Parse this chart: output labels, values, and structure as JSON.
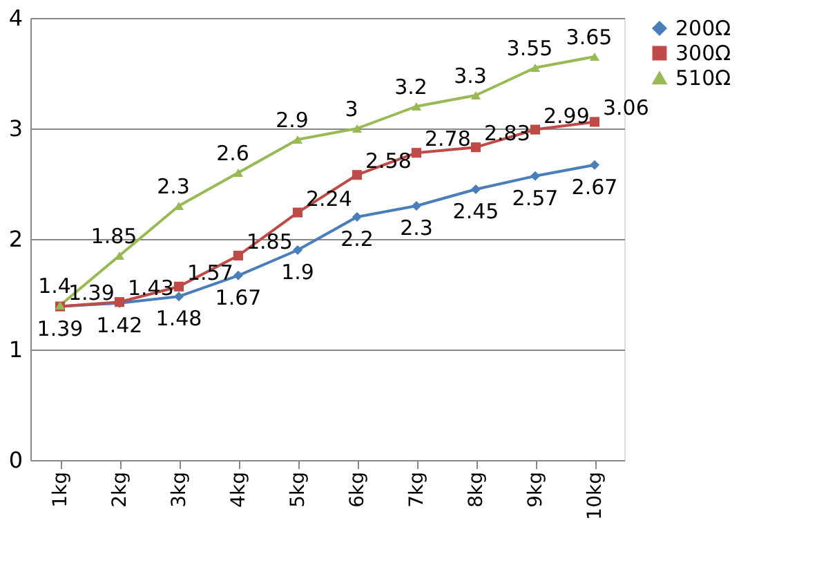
{
  "chart_data": {
    "type": "line",
    "categories": [
      "1kg",
      "2kg",
      "3kg",
      "4kg",
      "5kg",
      "6kg",
      "7kg",
      "8kg",
      "9kg",
      "10kg"
    ],
    "series": [
      {
        "name": "200Ω",
        "color": "#4a7ebb",
        "marker": "diamond",
        "values": [
          1.39,
          1.42,
          1.48,
          1.67,
          1.9,
          2.2,
          2.3,
          2.45,
          2.57,
          2.67
        ]
      },
      {
        "name": "300Ω",
        "color": "#be4b48",
        "marker": "square",
        "values": [
          1.39,
          1.43,
          1.57,
          1.85,
          2.24,
          2.58,
          2.78,
          2.83,
          2.99,
          3.06
        ]
      },
      {
        "name": "510Ω",
        "color": "#98b954",
        "marker": "triangle",
        "values": [
          1.4,
          1.85,
          2.3,
          2.6,
          2.9,
          3,
          3.2,
          3.3,
          3.55,
          3.65
        ]
      }
    ],
    "ylim": [
      0,
      4
    ],
    "yticks": [
      0,
      1,
      2,
      3,
      4
    ],
    "grid": "y",
    "legend": "right",
    "data_labels": true,
    "line_style": "solid"
  }
}
